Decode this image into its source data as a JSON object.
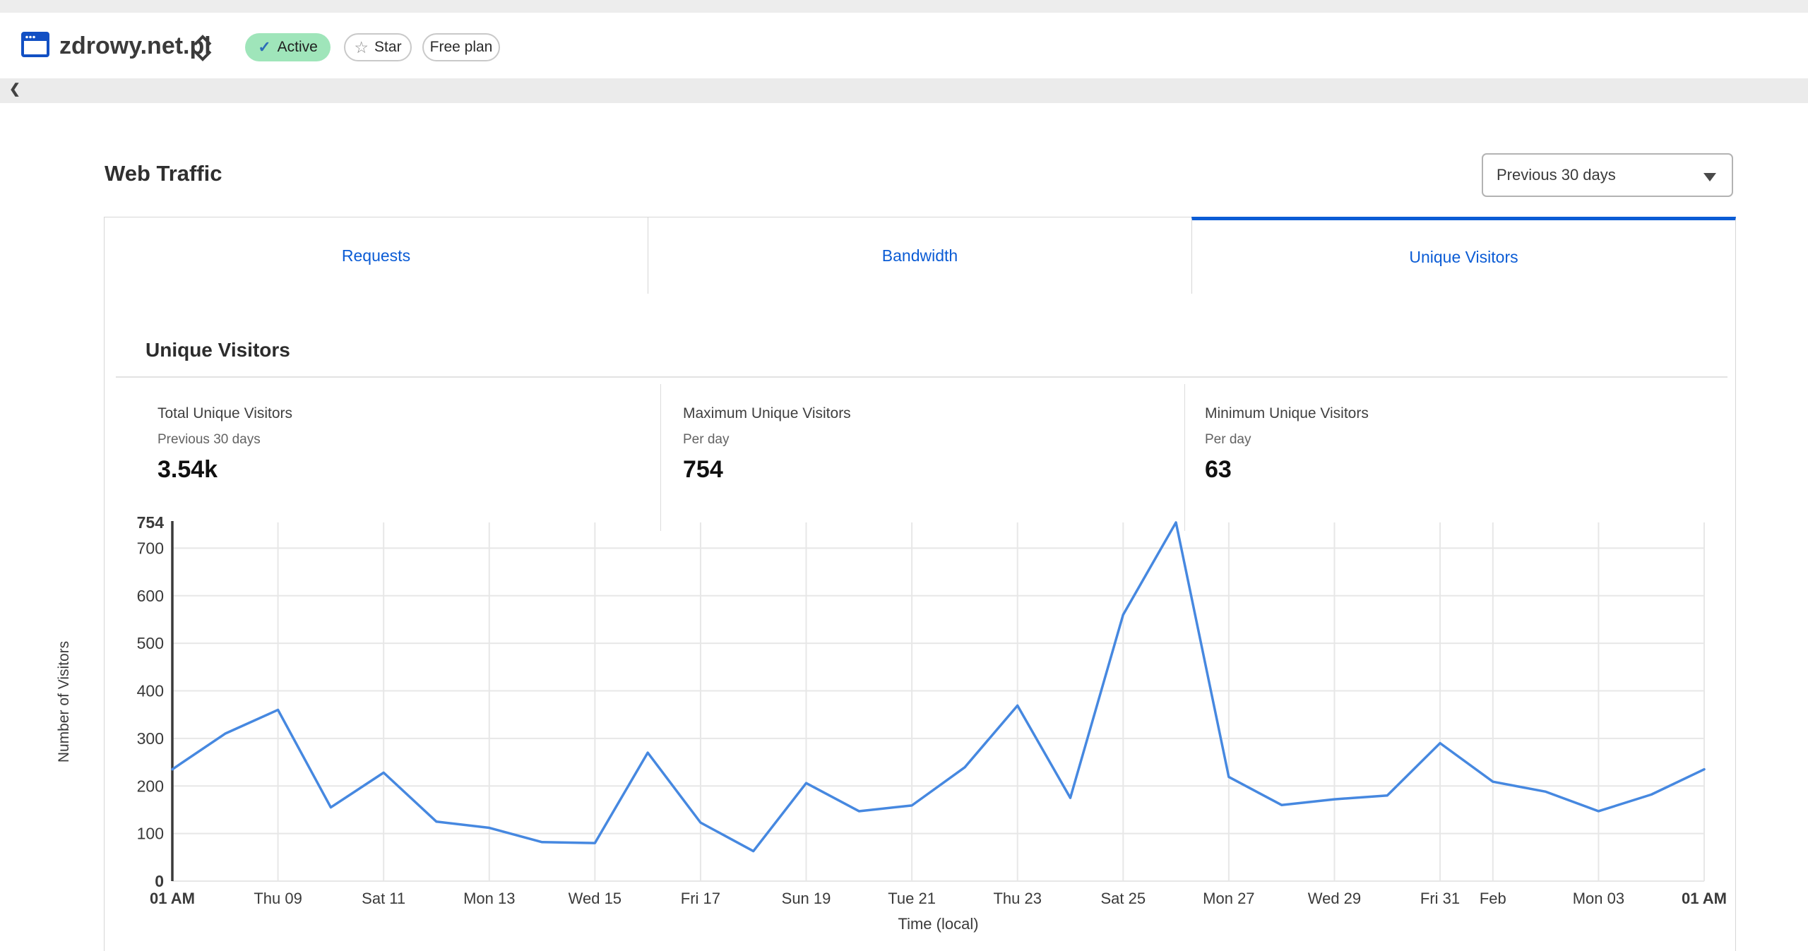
{
  "site_header": {
    "site_name": "zdrowy.net.pl",
    "status_badge": "Active",
    "star_button": "Star",
    "plan_badge": "Free plan"
  },
  "toolbar": {
    "back_glyph": "❮"
  },
  "page": {
    "title": "Web Traffic"
  },
  "range_selector": {
    "value": "Previous 30 days"
  },
  "tabs": [
    {
      "label": "Requests",
      "active": false
    },
    {
      "label": "Bandwidth",
      "active": false
    },
    {
      "label": "Unique Visitors",
      "active": true
    }
  ],
  "section": {
    "title": "Unique Visitors"
  },
  "stats": [
    {
      "label": "Total Unique Visitors",
      "sub": "Previous 30 days",
      "value": "3.54k"
    },
    {
      "label": "Maximum Unique Visitors",
      "sub": "Per day",
      "value": "754"
    },
    {
      "label": "Minimum Unique Visitors",
      "sub": "Per day",
      "value": "63"
    }
  ],
  "colors": {
    "accent_blue": "#0b5cd5",
    "line_blue": "#4688e0",
    "grid": "#e7e7e7",
    "axis": "#3a3a3a",
    "active_badge_bg": "#9fe5ba",
    "check_blue": "#2d6db8"
  },
  "chart_data": {
    "type": "line",
    "title": "Unique Visitors",
    "xlabel": "Time (local)",
    "ylabel": "Number of Visitors",
    "ylim": [
      0,
      754
    ],
    "grid": true,
    "legend": "none",
    "values": [
      235,
      310,
      360,
      155,
      228,
      125,
      112,
      82,
      80,
      270,
      123,
      63,
      206,
      147,
      159,
      239,
      369,
      175,
      560,
      754,
      219,
      160,
      172,
      180,
      290,
      209,
      188,
      147,
      182,
      235
    ],
    "x_ticks": [
      {
        "label": "01 AM",
        "day": 0,
        "bold": true
      },
      {
        "label": "Thu 09",
        "day": 2
      },
      {
        "label": "Sat 11",
        "day": 4
      },
      {
        "label": "Mon 13",
        "day": 6
      },
      {
        "label": "Wed 15",
        "day": 8
      },
      {
        "label": "Fri 17",
        "day": 10
      },
      {
        "label": "Sun 19",
        "day": 12
      },
      {
        "label": "Tue 21",
        "day": 14
      },
      {
        "label": "Thu 23",
        "day": 16
      },
      {
        "label": "Sat 25",
        "day": 18
      },
      {
        "label": "Mon 27",
        "day": 20
      },
      {
        "label": "Wed 29",
        "day": 22
      },
      {
        "label": "Fri 31",
        "day": 24
      },
      {
        "label": "Feb",
        "day": 25
      },
      {
        "label": "Mon 03",
        "day": 27
      },
      {
        "label": "01 AM",
        "day": 29,
        "bold": true
      }
    ],
    "y_ticks": [
      {
        "v": 754,
        "bold": true
      },
      {
        "v": 700
      },
      {
        "v": 600
      },
      {
        "v": 500
      },
      {
        "v": 400
      },
      {
        "v": 300
      },
      {
        "v": 200
      },
      {
        "v": 100
      },
      {
        "v": 0,
        "bold": true
      }
    ]
  }
}
